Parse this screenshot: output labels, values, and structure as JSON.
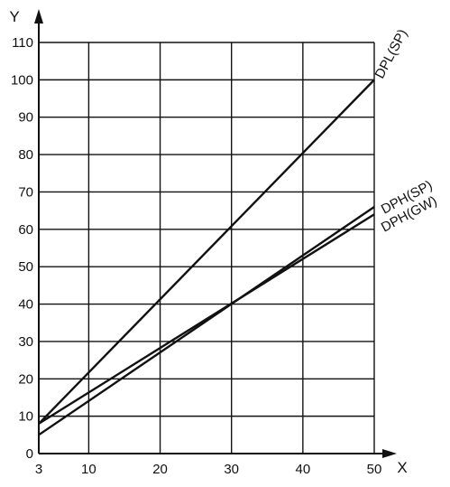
{
  "chart_data": {
    "type": "line",
    "title": "",
    "xlabel": "X",
    "ylabel": "Y",
    "xlim": [
      3,
      50
    ],
    "ylim": [
      0,
      110
    ],
    "x_ticks": [
      3,
      10,
      20,
      30,
      40,
      50
    ],
    "y_ticks": [
      0,
      10,
      20,
      30,
      40,
      50,
      60,
      70,
      80,
      90,
      100,
      110
    ],
    "grid": true,
    "series": [
      {
        "name": "DPL(SP)",
        "x": [
          3,
          50
        ],
        "y": [
          8,
          100
        ]
      },
      {
        "name": "DPH(SP)",
        "x": [
          3,
          50
        ],
        "y": [
          5,
          66
        ]
      },
      {
        "name": "DPH(GW)",
        "x": [
          3,
          50
        ],
        "y": [
          8,
          64
        ]
      }
    ]
  },
  "colors": {
    "line": "#111111",
    "grid": "#111111",
    "background": "#ffffff"
  }
}
